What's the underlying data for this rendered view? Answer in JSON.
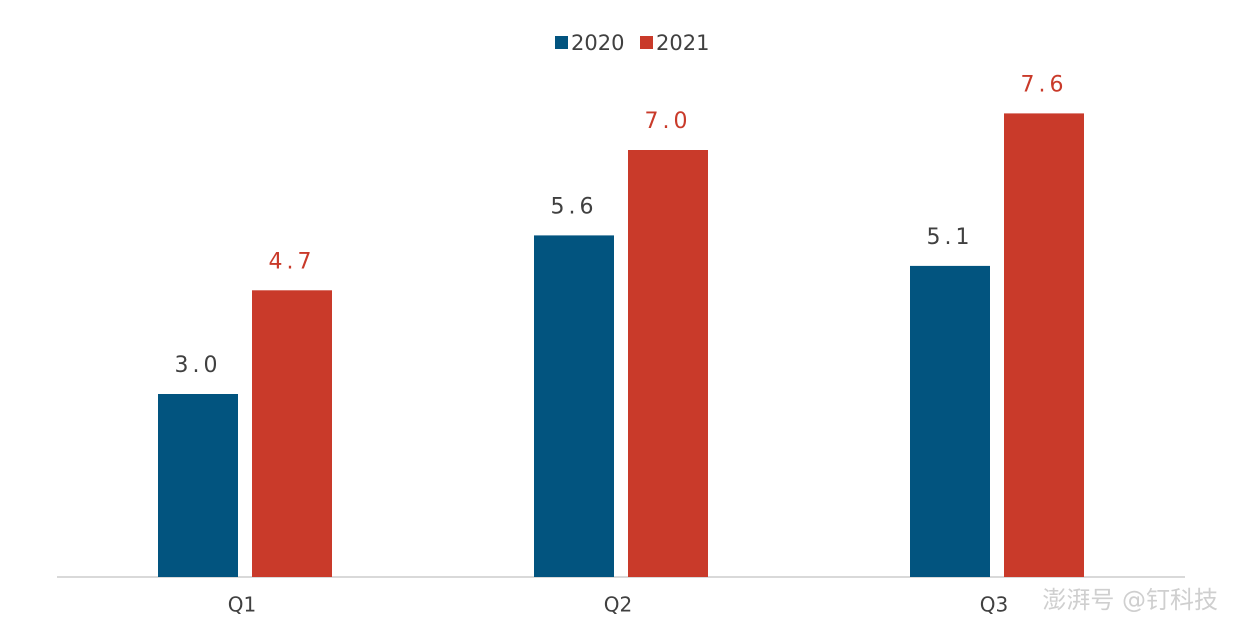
{
  "chart_data": {
    "type": "bar",
    "categories": [
      "Q1",
      "Q2",
      "Q3"
    ],
    "series": [
      {
        "name": "2020",
        "color": "#02547f",
        "label_color": "#404040",
        "values": [
          3.0,
          5.6,
          5.1
        ],
        "value_labels": [
          "3.0",
          "5.6",
          "5.1"
        ]
      },
      {
        "name": "2021",
        "color": "#c93a2a",
        "label_color": "#c93a2a",
        "values": [
          4.7,
          7.0,
          7.6
        ],
        "value_labels": [
          "4.7",
          "7.0",
          "7.6"
        ]
      }
    ],
    "ylim": [
      0,
      9
    ],
    "legend": "top",
    "watermark": "澎湃号 @钉科技"
  }
}
